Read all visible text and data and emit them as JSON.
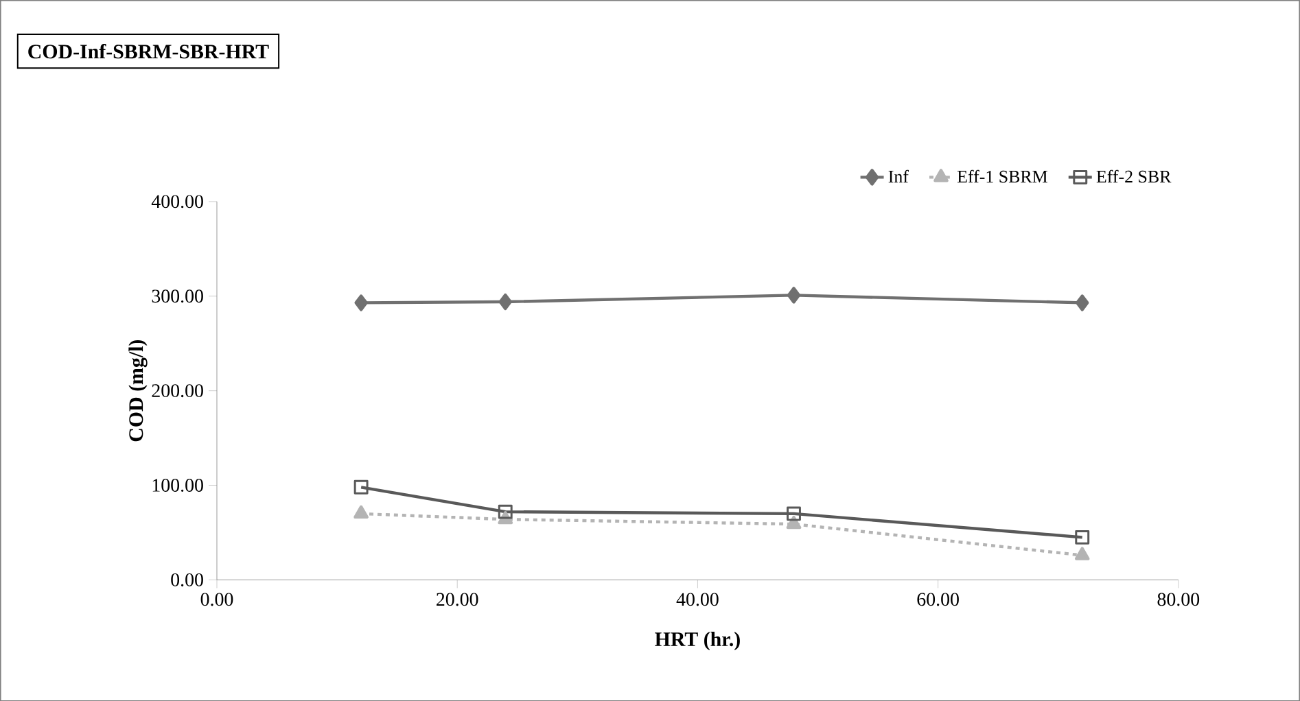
{
  "chart_data": {
    "type": "line",
    "title": "COD-Inf-SBRM-SBR-HRT",
    "xlabel": "HRT (hr.)",
    "ylabel": "COD (mg/l)",
    "x": [
      12,
      24,
      48,
      72
    ],
    "series": [
      {
        "name": "Inf",
        "color": "#707070",
        "values": [
          293,
          294,
          301,
          293
        ],
        "marker": "diamond",
        "line_style": "solid"
      },
      {
        "name": "Eff-1 SBRM",
        "color": "#b4b4b4",
        "values": [
          70,
          64,
          59,
          26
        ],
        "marker": "triangle",
        "line_style": "dashed"
      },
      {
        "name": "Eff-2 SBR",
        "color": "#595959",
        "values": [
          98,
          72,
          70,
          45
        ],
        "marker": "square",
        "line_style": "solid"
      }
    ],
    "xlim": [
      0,
      80
    ],
    "ylim": [
      0,
      400
    ],
    "xticks": [
      {
        "value": 0,
        "label": "0.00"
      },
      {
        "value": 20,
        "label": "20.00"
      },
      {
        "value": 40,
        "label": "40.00"
      },
      {
        "value": 60,
        "label": "60.00"
      },
      {
        "value": 80,
        "label": "80.00"
      }
    ],
    "yticks": [
      {
        "value": 0,
        "label": "0.00"
      },
      {
        "value": 100,
        "label": "100.00"
      },
      {
        "value": 200,
        "label": "200.00"
      },
      {
        "value": 300,
        "label": "300.00"
      },
      {
        "value": 400,
        "label": "400.00"
      }
    ],
    "grid": false,
    "legend": "top right"
  }
}
